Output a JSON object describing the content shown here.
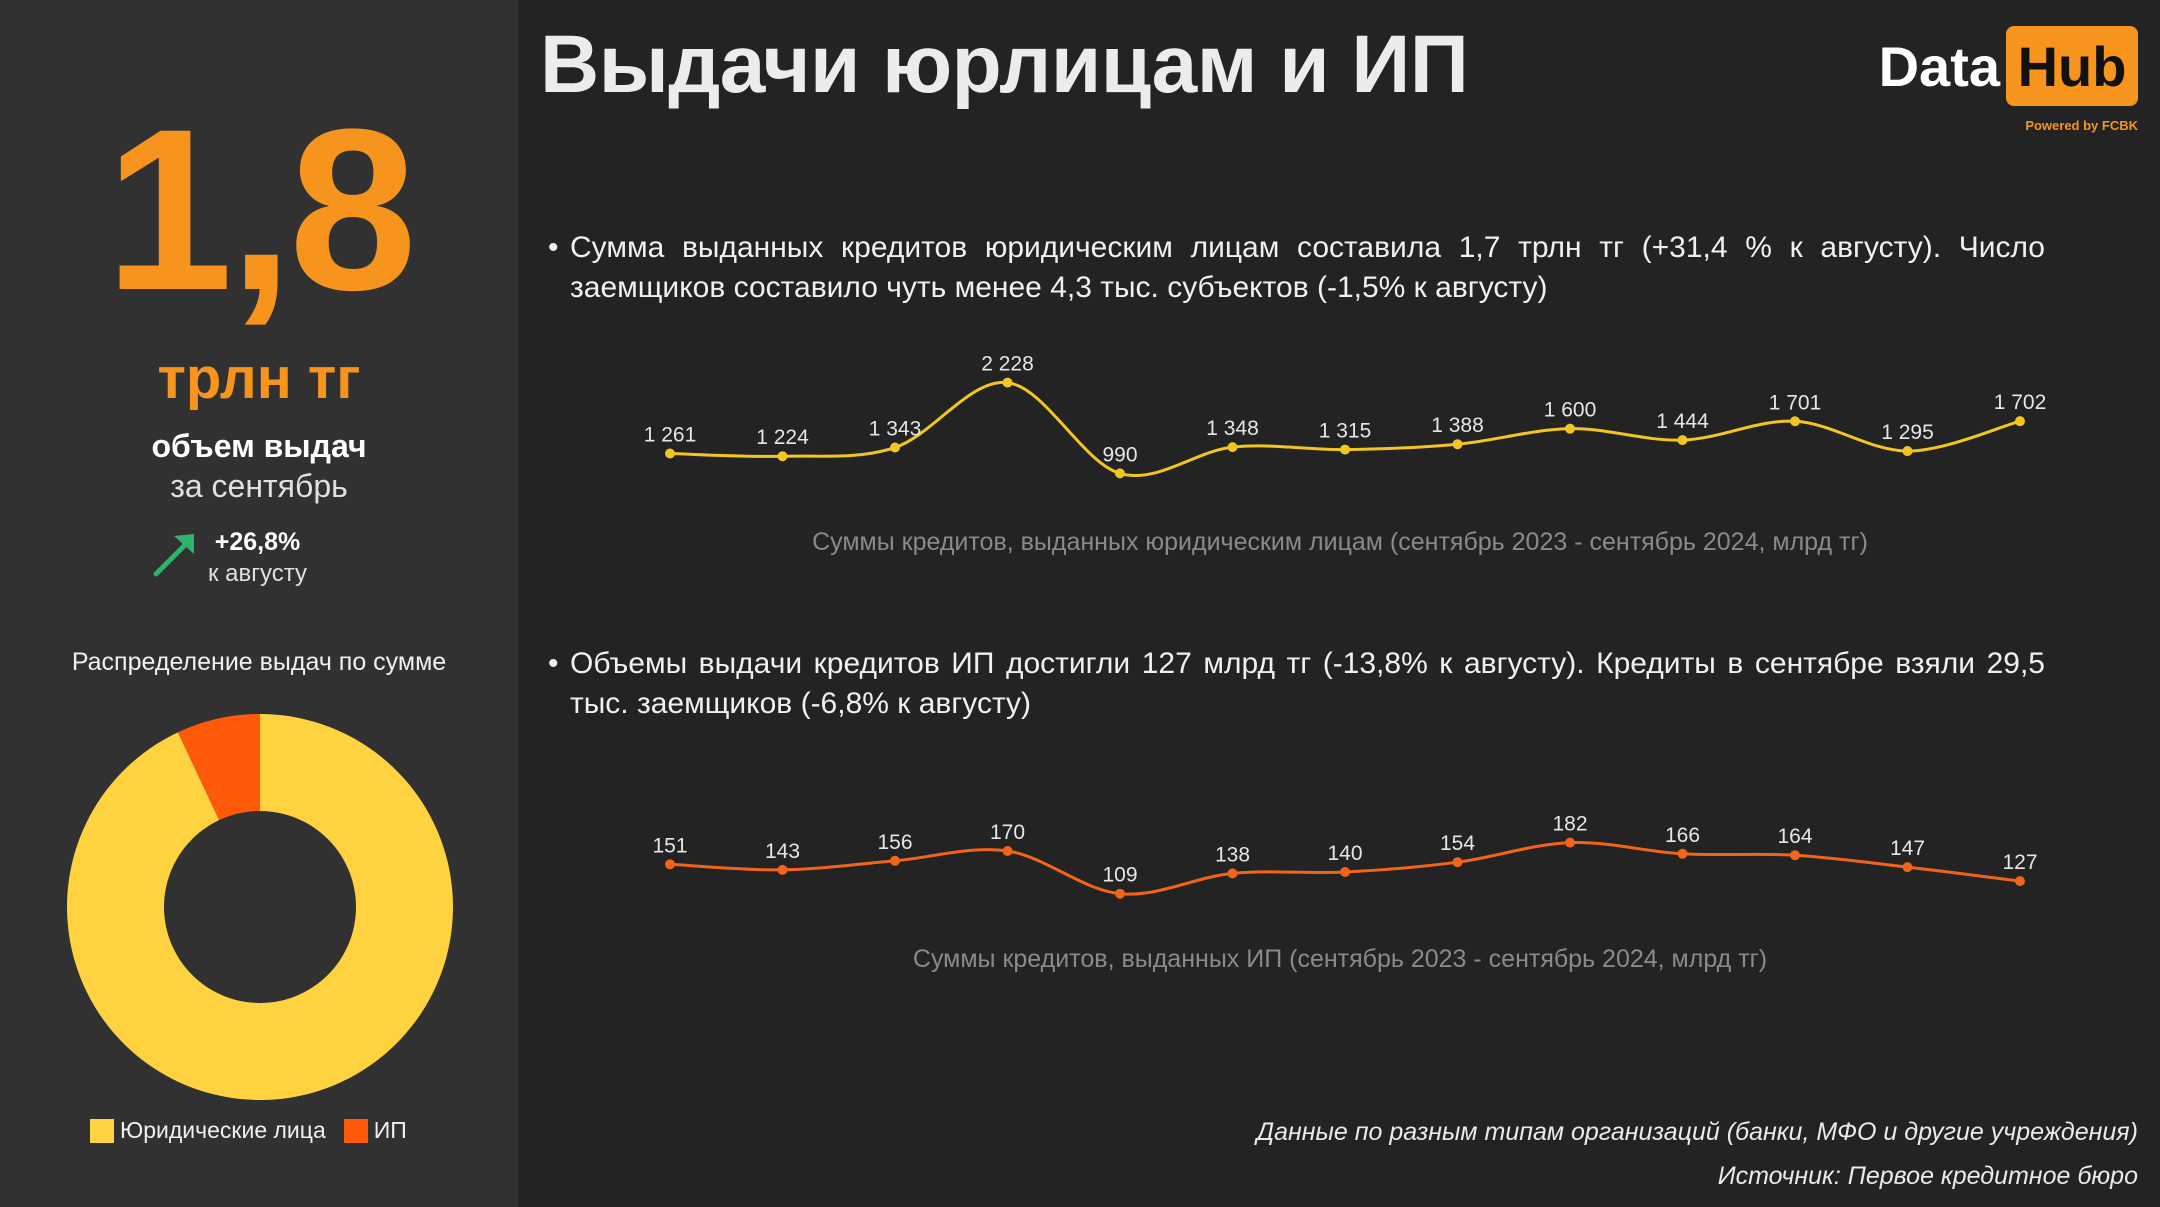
{
  "sidebar": {
    "big_number": "1,8",
    "big_unit": "трлн тг",
    "caption_1": "объем выдач",
    "caption_2": "за сентябрь",
    "growth_value": "+26,8%",
    "growth_label": "к августу",
    "donut_title": "Распределение выдач по сумме"
  },
  "header": {
    "title": "Выдачи юрлицам и ИП",
    "logo_data": "Data",
    "logo_hub": "Hub",
    "logo_powered": "Powered by FCBK"
  },
  "bullets": {
    "first": "Сумма выданных кредитов юридическим лицам составила 1,7 трлн тг (+31,4 % к августу). Число заемщиков составило чуть менее 4,3 тыс. субъектов (-1,5% к августу)",
    "second": "Объемы выдачи кредитов ИП достигли 127 млрд тг (-13,8% к августу). Кредиты в сентябре взяли 29,5 тыс. заемщиков (-6,8% к августу)"
  },
  "footnotes": {
    "line1": "Данные по разным типам организаций (банки, МФО и другие учреждения)",
    "line2": "Источник: Первое кредитное бюро"
  },
  "colors": {
    "accent_orange": "#f7941d",
    "legal_entities": "#ffd23f",
    "ip": "#ff5a0a",
    "growth_arrow": "#2db36b",
    "line_legal": "#f2c521",
    "line_ip": "#f26419"
  },
  "icons": {
    "growth_arrow": "arrow-up-right-icon"
  },
  "chart_data": [
    {
      "type": "pie",
      "variant": "donut",
      "title": "Распределение выдач по сумме",
      "categories": [
        "Юридические лица",
        "ИП"
      ],
      "values": [
        93,
        7
      ],
      "colors": [
        "#ffd23f",
        "#ff5a0a"
      ],
      "legend": "bottom"
    },
    {
      "type": "line",
      "title": "Суммы кредитов, выданных юридическим лицам (сентябрь 2023 - сентябрь 2024, млрд тг)",
      "values": [
        1261,
        1224,
        1343,
        2228,
        990,
        1348,
        1315,
        1388,
        1600,
        1444,
        1701,
        1295,
        1702
      ],
      "labels": [
        "1 261",
        "1 224",
        "1 343",
        "2 228",
        "990",
        "1 348",
        "1 315",
        "1 388",
        "1 600",
        "1 444",
        "1 701",
        "1 295",
        "1 702"
      ],
      "ylim": [
        900,
        2400
      ],
      "grid": false,
      "color": "#f2c521"
    },
    {
      "type": "line",
      "title": "Суммы кредитов, выданных ИП  (сентябрь 2023 - сентябрь 2024, млрд тг)",
      "values": [
        151,
        143,
        156,
        170,
        109,
        138,
        140,
        154,
        182,
        166,
        164,
        147,
        127
      ],
      "labels": [
        "151",
        "143",
        "156",
        "170",
        "109",
        "138",
        "140",
        "154",
        "182",
        "166",
        "164",
        "147",
        "127"
      ],
      "ylim": [
        100,
        200
      ],
      "grid": false,
      "color": "#f26419"
    }
  ]
}
